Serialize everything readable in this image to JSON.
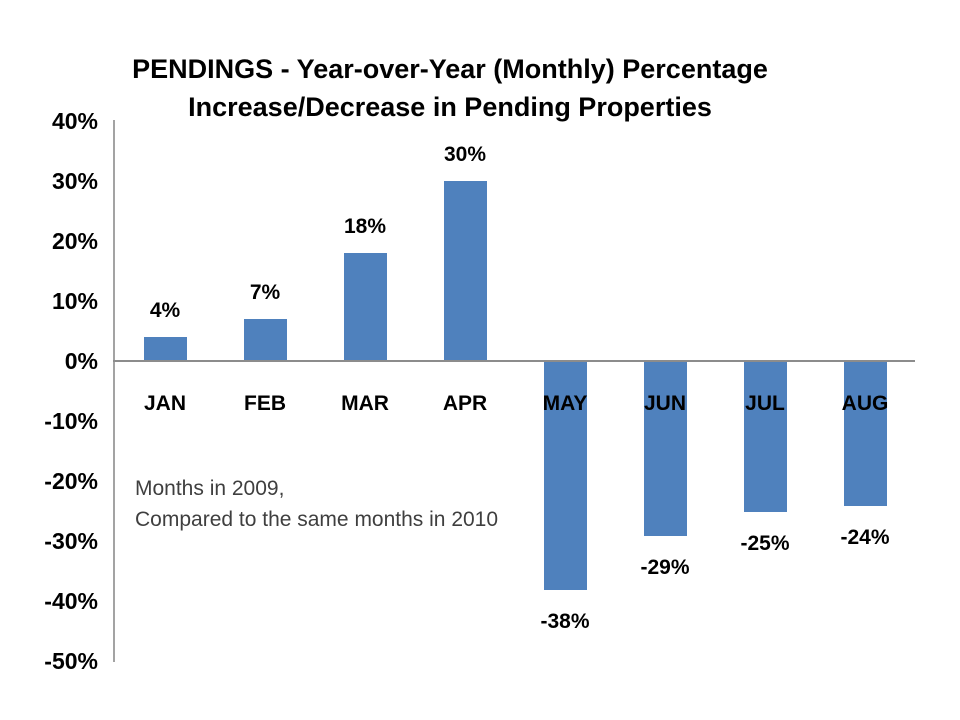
{
  "slide": {
    "title_line1": "PENDINGS - Year-over-Year (Monthly) Percentage",
    "title_line2": "Increase/Decrease in Pending Properties",
    "annotation_line1": "Months in 2009,",
    "annotation_line2": "Compared to the same months in 2010"
  },
  "chart_data": {
    "type": "bar",
    "title": "PENDINGS - Year-over-Year (Monthly) Percentage Increase/Decrease in Pending Properties",
    "categories": [
      "JAN",
      "FEB",
      "MAR",
      "APR",
      "MAY",
      "JUN",
      "JUL",
      "AUG"
    ],
    "values": [
      4,
      7,
      18,
      30,
      -38,
      -29,
      -25,
      -24
    ],
    "data_labels": [
      "4%",
      "7%",
      "18%",
      "30%",
      "-38%",
      "-29%",
      "-25%",
      "-24%"
    ],
    "ytick_labels": [
      "40%",
      "30%",
      "20%",
      "10%",
      "0%",
      "-10%",
      "-20%",
      "-30%",
      "-40%",
      "-50%"
    ],
    "ytick_values": [
      40,
      30,
      20,
      10,
      0,
      -10,
      -20,
      -30,
      -40,
      -50
    ],
    "ylim": [
      -50,
      40
    ],
    "xlabel": "",
    "ylabel": "",
    "grid": false,
    "legend": false,
    "bar_color": "#4F81BD",
    "axis_color": "#8c8c8c",
    "annotation": "Months in 2009,\nCompared to the same months in 2010"
  }
}
